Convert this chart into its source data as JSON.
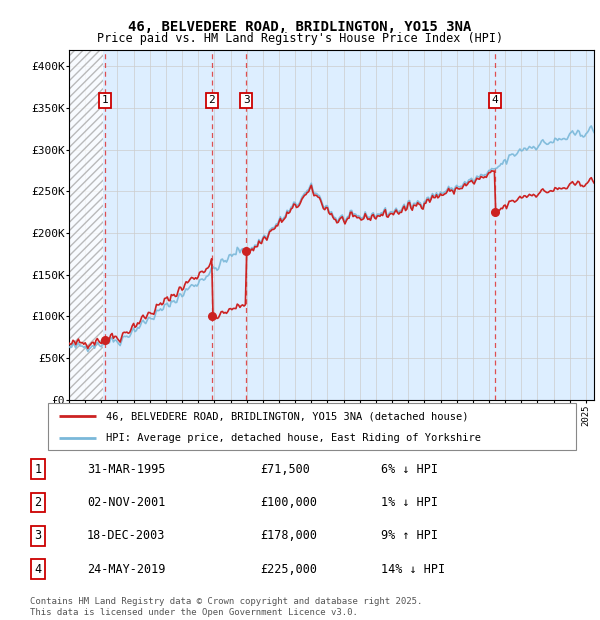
{
  "title": "46, BELVEDERE ROAD, BRIDLINGTON, YO15 3NA",
  "subtitle": "Price paid vs. HM Land Registry's House Price Index (HPI)",
  "ylim": [
    0,
    420000
  ],
  "yticks": [
    0,
    50000,
    100000,
    150000,
    200000,
    250000,
    300000,
    350000,
    400000
  ],
  "ytick_labels": [
    "£0",
    "£50K",
    "£100K",
    "£150K",
    "£200K",
    "£250K",
    "£300K",
    "£350K",
    "£400K"
  ],
  "xlim_start": 1993.0,
  "xlim_end": 2025.5,
  "hpi_color": "#7ab8d9",
  "price_color": "#cc2222",
  "bg_color": "#ddeeff",
  "vline_color": "#dd3333",
  "transactions": [
    {
      "num": 1,
      "date_dec": 1995.25,
      "price": 71500,
      "label": "1"
    },
    {
      "num": 2,
      "date_dec": 2001.84,
      "price": 100000,
      "label": "2"
    },
    {
      "num": 3,
      "date_dec": 2003.97,
      "price": 178000,
      "label": "3"
    },
    {
      "num": 4,
      "date_dec": 2019.39,
      "price": 225000,
      "label": "4"
    }
  ],
  "legend_price_label": "46, BELVEDERE ROAD, BRIDLINGTON, YO15 3NA (detached house)",
  "legend_hpi_label": "HPI: Average price, detached house, East Riding of Yorkshire",
  "table_rows": [
    {
      "num": "1",
      "date": "31-MAR-1995",
      "price": "£71,500",
      "hpi": "6% ↓ HPI"
    },
    {
      "num": "2",
      "date": "02-NOV-2001",
      "price": "£100,000",
      "hpi": "1% ↓ HPI"
    },
    {
      "num": "3",
      "date": "18-DEC-2003",
      "price": "£178,000",
      "hpi": "9% ↑ HPI"
    },
    {
      "num": "4",
      "date": "24-MAY-2019",
      "price": "£225,000",
      "hpi": "14% ↓ HPI"
    }
  ],
  "footer": "Contains HM Land Registry data © Crown copyright and database right 2025.\nThis data is licensed under the Open Government Licence v3.0."
}
